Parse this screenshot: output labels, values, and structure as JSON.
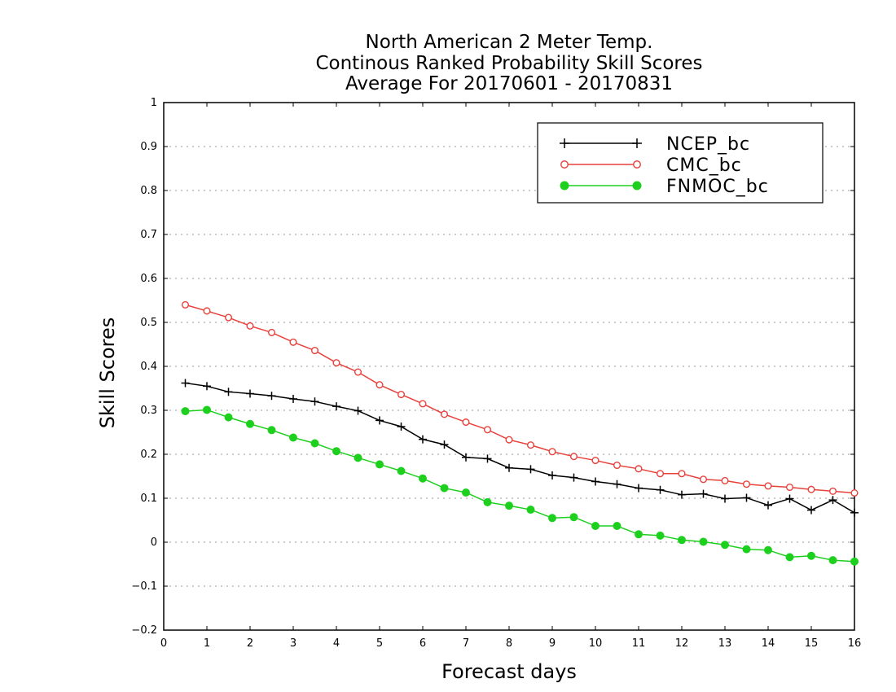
{
  "chart_data": {
    "type": "line",
    "title_lines": [
      "North American 2 Meter Temp.",
      "Continous Ranked Probability Skill Scores",
      "Average For 20170601 - 20170831"
    ],
    "xlabel": "Forecast days",
    "ylabel": "Skill Scores",
    "xlim": [
      0,
      16
    ],
    "ylim": [
      -0.2,
      1
    ],
    "x_ticks": [
      "0",
      "1",
      "2",
      "3",
      "4",
      "5",
      "6",
      "7",
      "8",
      "9",
      "10",
      "11",
      "12",
      "13",
      "14",
      "15",
      "16"
    ],
    "y_ticks": [
      "−0.2",
      "−0.1",
      "0",
      "0.1",
      "0.2",
      "0.3",
      "0.4",
      "0.5",
      "0.6",
      "0.7",
      "0.8",
      "0.9",
      "1"
    ],
    "grid": "horizontal-dotted",
    "legend_position": "top-right",
    "x": [
      0.5,
      1,
      1.5,
      2,
      2.5,
      3,
      3.5,
      4,
      4.5,
      5,
      5.5,
      6,
      6.5,
      7,
      7.5,
      8,
      8.5,
      9,
      9.5,
      10,
      10.5,
      11,
      11.5,
      12,
      12.5,
      13,
      13.5,
      14,
      14.5,
      15,
      15.5,
      16
    ],
    "series": [
      {
        "name": "NCEP_bc",
        "color": "#000000",
        "marker": "plus",
        "values": [
          0.362,
          0.355,
          0.342,
          0.338,
          0.333,
          0.326,
          0.32,
          0.309,
          0.299,
          0.277,
          0.263,
          0.234,
          0.222,
          0.193,
          0.19,
          0.169,
          0.166,
          0.152,
          0.147,
          0.138,
          0.132,
          0.123,
          0.119,
          0.108,
          0.11,
          0.099,
          0.101,
          0.084,
          0.099,
          0.073,
          0.096,
          0.067
        ]
      },
      {
        "name": "CMC_bc",
        "color": "#e8413c",
        "marker": "open-circle",
        "values": [
          0.54,
          0.526,
          0.511,
          0.492,
          0.477,
          0.455,
          0.436,
          0.408,
          0.387,
          0.358,
          0.336,
          0.315,
          0.291,
          0.273,
          0.256,
          0.233,
          0.221,
          0.206,
          0.195,
          0.186,
          0.175,
          0.167,
          0.156,
          0.156,
          0.143,
          0.14,
          0.132,
          0.128,
          0.125,
          0.12,
          0.116,
          0.112
        ]
      },
      {
        "name": "FNMOC_bc",
        "color": "#1ed01e",
        "marker": "filled-circle",
        "values": [
          0.298,
          0.301,
          0.284,
          0.269,
          0.255,
          0.238,
          0.225,
          0.207,
          0.192,
          0.177,
          0.162,
          0.145,
          0.123,
          0.113,
          0.091,
          0.083,
          0.074,
          0.055,
          0.057,
          0.037,
          0.037,
          0.018,
          0.015,
          0.005,
          0.001,
          -0.006,
          -0.016,
          -0.018,
          -0.034,
          -0.031,
          -0.041,
          -0.044
        ]
      }
    ]
  }
}
